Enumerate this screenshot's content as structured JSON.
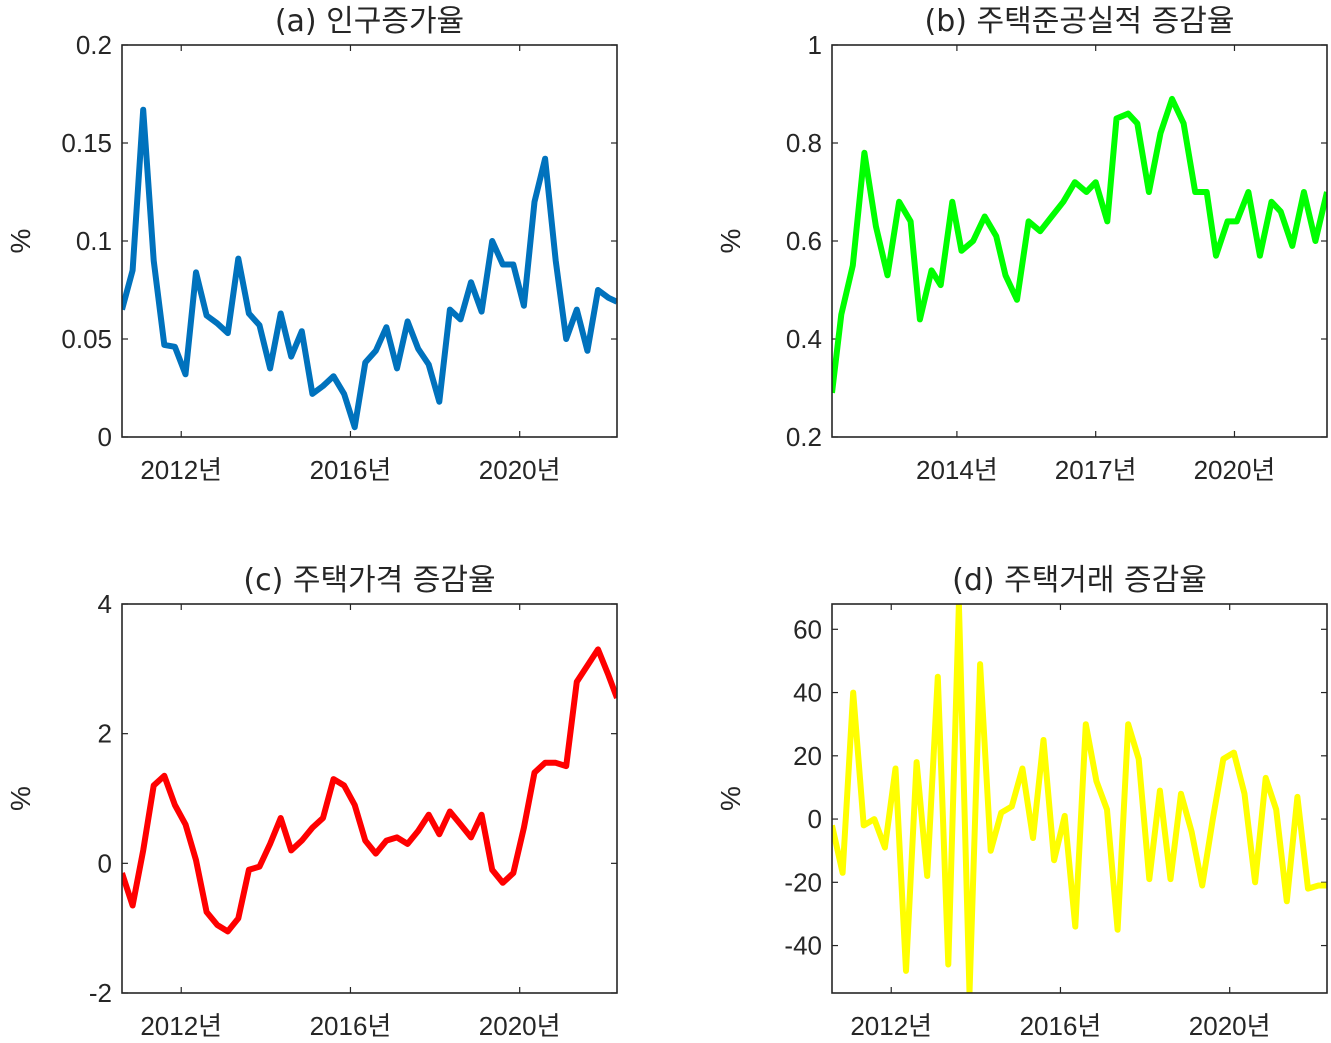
{
  "chart_data": [
    {
      "type": "line",
      "title": "(a) 인구증가율",
      "ylabel": "%",
      "xlabel": "",
      "color": "#0072BD",
      "ylim": [
        0,
        0.2
      ],
      "yticks": [
        0,
        0.05,
        0.1,
        0.15,
        0.2
      ],
      "ytick_labels": [
        "0",
        "0.05",
        "0.1",
        "0.15",
        "0.2"
      ],
      "xlim": [
        2010.6,
        2022.3
      ],
      "xticks": [
        2012,
        2016,
        2020
      ],
      "xtick_labels": [
        "2012년",
        "2016년",
        "2020년"
      ],
      "grid": false,
      "series": [
        {
          "x": [
            2010.6,
            2010.85,
            2011.1,
            2011.35,
            2011.6,
            2011.85,
            2012.1,
            2012.35,
            2012.6,
            2012.85,
            2013.1,
            2013.35,
            2013.6,
            2013.85,
            2014.1,
            2014.35,
            2014.6,
            2014.85,
            2015.1,
            2015.35,
            2015.6,
            2015.85,
            2016.1,
            2016.35,
            2016.6,
            2016.85,
            2017.1,
            2017.35,
            2017.6,
            2017.85,
            2018.1,
            2018.35,
            2018.6,
            2018.85,
            2019.1,
            2019.35,
            2019.6,
            2019.85,
            2020.1,
            2020.35,
            2020.6,
            2020.85,
            2021.1,
            2021.35,
            2021.6,
            2021.85,
            2022.1,
            2022.3
          ],
          "values": [
            0.065,
            0.085,
            0.167,
            0.09,
            0.047,
            0.046,
            0.032,
            0.084,
            0.062,
            0.058,
            0.053,
            0.091,
            0.063,
            0.057,
            0.035,
            0.063,
            0.041,
            0.054,
            0.022,
            0.026,
            0.031,
            0.022,
            0.005,
            0.038,
            0.044,
            0.056,
            0.035,
            0.059,
            0.045,
            0.037,
            0.018,
            0.065,
            0.06,
            0.079,
            0.064,
            0.1,
            0.088,
            0.088,
            0.067,
            0.12,
            0.142,
            0.09,
            0.05,
            0.065,
            0.044,
            0.075,
            0.071,
            0.069
          ]
        }
      ]
    },
    {
      "type": "line",
      "title": "(b) 주택준공실적 증감율",
      "ylabel": "%",
      "xlabel": "",
      "color": "#00FF00",
      "ylim": [
        0.2,
        1.0
      ],
      "yticks": [
        0.2,
        0.4,
        0.6,
        0.8,
        1.0
      ],
      "ytick_labels": [
        "0.2",
        "0.4",
        "0.6",
        "0.8",
        "1"
      ],
      "xlim": [
        2011.3,
        2022.0
      ],
      "xticks": [
        2014,
        2017,
        2020
      ],
      "xtick_labels": [
        "2014년",
        "2017년",
        "2020년"
      ],
      "grid": false,
      "series": [
        {
          "x": [
            2011.3,
            2011.5,
            2011.75,
            2012.0,
            2012.25,
            2012.5,
            2012.75,
            2013.0,
            2013.2,
            2013.45,
            2013.65,
            2013.9,
            2014.1,
            2014.35,
            2014.6,
            2014.85,
            2015.05,
            2015.3,
            2015.55,
            2015.8,
            2016.05,
            2016.3,
            2016.55,
            2016.8,
            2017.0,
            2017.25,
            2017.45,
            2017.7,
            2017.9,
            2018.15,
            2018.4,
            2018.65,
            2018.9,
            2019.15,
            2019.4,
            2019.6,
            2019.85,
            2020.05,
            2020.3,
            2020.55,
            2020.8,
            2021.0,
            2021.25,
            2021.5,
            2021.75,
            2022.0
          ],
          "values": [
            0.29,
            0.45,
            0.55,
            0.78,
            0.63,
            0.53,
            0.68,
            0.64,
            0.44,
            0.54,
            0.51,
            0.68,
            0.58,
            0.6,
            0.65,
            0.61,
            0.53,
            0.48,
            0.64,
            0.62,
            0.65,
            0.68,
            0.72,
            0.7,
            0.72,
            0.64,
            0.85,
            0.86,
            0.84,
            0.7,
            0.82,
            0.89,
            0.84,
            0.7,
            0.7,
            0.57,
            0.64,
            0.64,
            0.7,
            0.57,
            0.68,
            0.66,
            0.59,
            0.7,
            0.6,
            0.7
          ]
        }
      ]
    },
    {
      "type": "line",
      "title": "(c) 주택가격 증감율",
      "ylabel": "%",
      "xlabel": "",
      "color": "#FF0000",
      "ylim": [
        -2,
        4
      ],
      "yticks": [
        -2,
        0,
        2,
        4
      ],
      "ytick_labels": [
        "-2",
        "0",
        "2",
        "4"
      ],
      "xlim": [
        2010.6,
        2022.3
      ],
      "xticks": [
        2012,
        2016,
        2020
      ],
      "xtick_labels": [
        "2012년",
        "2016년",
        "2020년"
      ],
      "grid": false,
      "series": [
        {
          "x": [
            2010.6,
            2010.85,
            2011.1,
            2011.35,
            2011.6,
            2011.85,
            2012.1,
            2012.35,
            2012.6,
            2012.85,
            2013.1,
            2013.35,
            2013.6,
            2013.85,
            2014.1,
            2014.35,
            2014.6,
            2014.85,
            2015.1,
            2015.35,
            2015.6,
            2015.85,
            2016.1,
            2016.35,
            2016.6,
            2016.85,
            2017.1,
            2017.35,
            2017.6,
            2017.85,
            2018.1,
            2018.35,
            2018.6,
            2018.85,
            2019.1,
            2019.35,
            2019.6,
            2019.85,
            2020.1,
            2020.35,
            2020.6,
            2020.85,
            2021.1,
            2021.35,
            2021.6,
            2021.85,
            2022.1,
            2022.3
          ],
          "values": [
            -0.15,
            -0.65,
            0.2,
            1.2,
            1.35,
            0.9,
            0.6,
            0.05,
            -0.75,
            -0.95,
            -1.05,
            -0.85,
            -0.1,
            -0.05,
            0.3,
            0.7,
            0.2,
            0.35,
            0.55,
            0.7,
            1.3,
            1.2,
            0.9,
            0.35,
            0.15,
            0.35,
            0.4,
            0.3,
            0.5,
            0.75,
            0.45,
            0.8,
            0.6,
            0.4,
            0.75,
            -0.1,
            -0.3,
            -0.15,
            0.55,
            1.4,
            1.55,
            1.55,
            1.5,
            2.8,
            3.05,
            3.3,
            2.9,
            2.55
          ]
        }
      ]
    },
    {
      "type": "line",
      "title": "(d) 주택거래 증감율",
      "ylabel": "%",
      "xlabel": "",
      "color": "#FFFF00",
      "ylim": [
        -55,
        68
      ],
      "yticks": [
        -40,
        -20,
        0,
        20,
        40,
        60
      ],
      "ytick_labels": [
        "-40",
        "-20",
        "0",
        "20",
        "40",
        "60"
      ],
      "xlim": [
        2010.6,
        2022.3
      ],
      "xticks": [
        2012,
        2016,
        2020
      ],
      "xtick_labels": [
        "2012년",
        "2016년",
        "2020년"
      ],
      "grid": false,
      "series": [
        {
          "x": [
            2010.6,
            2010.85,
            2011.1,
            2011.35,
            2011.6,
            2011.85,
            2012.1,
            2012.35,
            2012.6,
            2012.85,
            2013.1,
            2013.35,
            2013.6,
            2013.85,
            2014.1,
            2014.35,
            2014.6,
            2014.85,
            2015.1,
            2015.35,
            2015.6,
            2015.85,
            2016.1,
            2016.35,
            2016.6,
            2016.85,
            2017.1,
            2017.35,
            2017.6,
            2017.85,
            2018.1,
            2018.35,
            2018.6,
            2018.85,
            2019.1,
            2019.35,
            2019.6,
            2019.85,
            2020.1,
            2020.35,
            2020.6,
            2020.85,
            2021.1,
            2021.35,
            2021.6,
            2021.85,
            2022.1,
            2022.3
          ],
          "values": [
            -2,
            -17,
            40,
            -2,
            0,
            -9,
            16,
            -48,
            18,
            -18,
            45,
            -46,
            68,
            -55,
            49,
            -10,
            2,
            4,
            16,
            -6,
            25,
            -13,
            1,
            -34,
            30,
            12,
            3,
            -35,
            30,
            19,
            -19,
            9,
            -19,
            8,
            -4,
            -21,
            0,
            19,
            21,
            8,
            -20,
            13,
            3,
            -26,
            7,
            -22,
            -21,
            -21
          ]
        }
      ]
    }
  ]
}
